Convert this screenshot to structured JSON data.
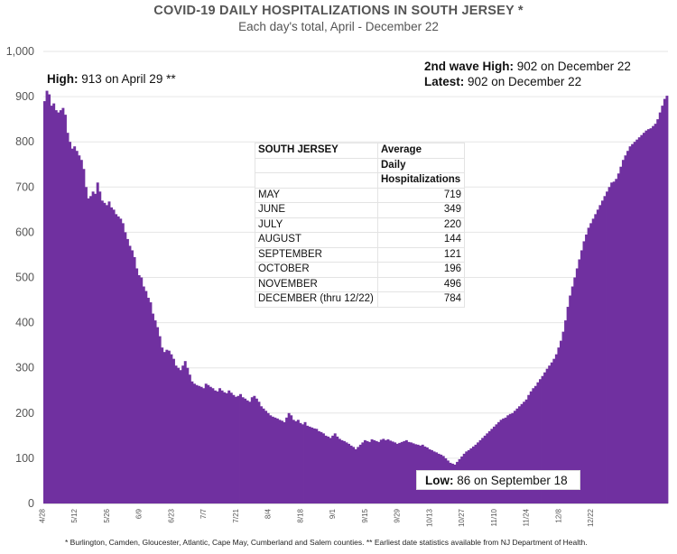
{
  "header": {
    "title": "COVID-19 DAILY HOSPITALIZATIONS IN SOUTH JERSEY *",
    "subtitle": "Each day's total, April - December 22"
  },
  "annotations": {
    "high_label": "High:",
    "high_text": " 913 on April 29 **",
    "second_wave_label": "2nd wave High:",
    "second_wave_text": " 902 on December 22",
    "latest_label": "Latest:",
    "latest_text": " 902 on December 22",
    "low_label": "Low:",
    "low_text": " 86 on September 18"
  },
  "table": {
    "header_col1": "SOUTH JERSEY",
    "header_col2_line1": "Average",
    "header_col2_line2": "Daily",
    "header_col2_line3": "Hospitalizations",
    "rows": [
      {
        "month": "MAY",
        "value": "719"
      },
      {
        "month": "JUNE",
        "value": "349"
      },
      {
        "month": "JULY",
        "value": "220"
      },
      {
        "month": "AUGUST",
        "value": "144"
      },
      {
        "month": "SEPTEMBER",
        "value": "121"
      },
      {
        "month": "OCTOBER",
        "value": "196"
      },
      {
        "month": "NOVEMBER",
        "value": "496"
      },
      {
        "month": "DECEMBER (thru 12/22)",
        "value": "784"
      }
    ]
  },
  "footnote": "* Burlington, Camden, Gloucester, Atlantic, Cape May, Cumberland and Salem counties. ** Earliest date statistics available from NJ Department of Health.",
  "colors": {
    "bars": "#7030a0",
    "grid": "#e6e6e6",
    "axis_text": "#555555"
  },
  "chart_data": {
    "type": "bar",
    "title": "COVID-19 DAILY HOSPITALIZATIONS IN SOUTH JERSEY *",
    "subtitle": "Each day's total, April - December 22",
    "ylim": [
      0,
      1000
    ],
    "yticks": [
      0,
      100,
      200,
      300,
      400,
      500,
      600,
      700,
      800,
      900,
      1000
    ],
    "x_tick_labels": [
      "4/28",
      "5/12",
      "5/26",
      "6/9",
      "6/23",
      "7/7",
      "7/21",
      "8/4",
      "8/18",
      "9/1",
      "9/15",
      "9/29",
      "10/13",
      "10/27",
      "11/10",
      "11/24",
      "12/8",
      "12/22"
    ],
    "x_tick_every": 14,
    "grid": true,
    "start": "4/28",
    "end": "12/22",
    "series": [
      {
        "values": [
          890,
          913,
          905,
          880,
          885,
          870,
          865,
          870,
          875,
          860,
          820,
          800,
          785,
          790,
          780,
          770,
          760,
          740,
          700,
          675,
          680,
          690,
          685,
          710,
          690,
          670,
          665,
          660,
          668,
          655,
          650,
          640,
          635,
          630,
          620,
          600,
          585,
          570,
          560,
          545,
          520,
          505,
          500,
          480,
          470,
          455,
          445,
          420,
          405,
          390,
          370,
          345,
          335,
          340,
          338,
          330,
          320,
          305,
          300,
          295,
          305,
          315,
          300,
          285,
          270,
          265,
          262,
          260,
          258,
          255,
          265,
          262,
          258,
          255,
          250,
          248,
          255,
          250,
          246,
          244,
          250,
          245,
          240,
          236,
          238,
          242,
          235,
          232,
          228,
          225,
          235,
          238,
          232,
          225,
          215,
          210,
          205,
          200,
          195,
          192,
          190,
          188,
          185,
          183,
          180,
          190,
          200,
          195,
          185,
          182,
          185,
          178,
          175,
          180,
          172,
          170,
          168,
          166,
          165,
          160,
          158,
          155,
          150,
          148,
          145,
          150,
          155,
          148,
          143,
          140,
          138,
          135,
          132,
          128,
          125,
          120,
          125,
          130,
          135,
          140,
          138,
          136,
          142,
          140,
          138,
          136,
          141,
          143,
          140,
          142,
          139,
          137,
          135,
          132,
          134,
          136,
          138,
          140,
          136,
          135,
          133,
          131,
          130,
          128,
          130,
          126,
          124,
          120,
          118,
          115,
          113,
          110,
          108,
          105,
          100,
          95,
          90,
          88,
          86,
          92,
          98,
          104,
          110,
          115,
          118,
          122,
          126,
          130,
          135,
          140,
          145,
          150,
          155,
          160,
          165,
          170,
          175,
          180,
          185,
          188,
          190,
          195,
          198,
          200,
          205,
          210,
          215,
          220,
          225,
          230,
          240,
          248,
          255,
          260,
          268,
          275,
          282,
          290,
          298,
          305,
          312,
          320,
          330,
          345,
          360,
          380,
          405,
          435,
          460,
          480,
          500,
          520,
          540,
          560,
          580,
          595,
          610,
          620,
          630,
          640,
          650,
          660,
          670,
          680,
          690,
          700,
          710,
          712,
          718,
          730,
          745,
          760,
          770,
          780,
          790,
          795,
          800,
          805,
          810,
          815,
          820,
          825,
          828,
          830,
          835,
          840,
          850,
          865,
          880,
          895,
          902
        ]
      }
    ]
  }
}
